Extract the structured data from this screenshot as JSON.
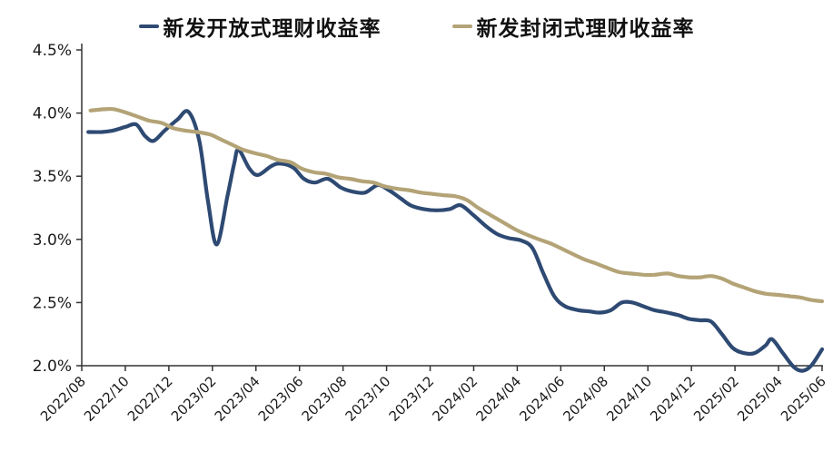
{
  "page": {
    "background": "#ffffff"
  },
  "chart_data": {
    "type": "line",
    "title": "",
    "grid": false,
    "legend_position": "top",
    "x_axis": {
      "tick_labels": [
        "2022/08",
        "2022/10",
        "2022/12",
        "2023/02",
        "2023/04",
        "2023/06",
        "2023/08",
        "2023/10",
        "2023/12",
        "2024/02",
        "2024/04",
        "2024/06",
        "2024/08",
        "2024/10",
        "2024/12",
        "2025/02",
        "2025/04",
        "2025/06"
      ],
      "tick_interval_months": 2,
      "range_months": [
        0,
        34.2
      ]
    },
    "y_axis": {
      "tick_labels": [
        "4.5%",
        "4.0%",
        "3.5%",
        "3.0%",
        "2.5%",
        "2.0%"
      ],
      "min": 2.0,
      "max": 4.5,
      "unit": "%"
    },
    "axis_color": "#333333",
    "text_color": "#1a1a1a",
    "series": [
      {
        "name": "新发开放式理财收益率",
        "color": "#2e4a73",
        "points": [
          [
            0.3,
            3.85
          ],
          [
            0.9,
            3.85
          ],
          [
            1.4,
            3.86
          ],
          [
            2.0,
            3.89
          ],
          [
            2.5,
            3.91
          ],
          [
            2.9,
            3.82
          ],
          [
            3.3,
            3.78
          ],
          [
            3.8,
            3.86
          ],
          [
            4.4,
            3.95
          ],
          [
            4.9,
            4.01
          ],
          [
            5.4,
            3.78
          ],
          [
            5.8,
            3.3
          ],
          [
            6.2,
            2.96
          ],
          [
            6.7,
            3.35
          ],
          [
            7.0,
            3.6
          ],
          [
            7.2,
            3.71
          ],
          [
            7.7,
            3.56
          ],
          [
            8.1,
            3.51
          ],
          [
            8.7,
            3.58
          ],
          [
            9.1,
            3.6
          ],
          [
            9.7,
            3.57
          ],
          [
            10.2,
            3.48
          ],
          [
            10.7,
            3.45
          ],
          [
            11.3,
            3.48
          ],
          [
            11.9,
            3.41
          ],
          [
            12.4,
            3.38
          ],
          [
            13.0,
            3.37
          ],
          [
            13.6,
            3.43
          ],
          [
            14.1,
            3.39
          ],
          [
            14.6,
            3.33
          ],
          [
            15.1,
            3.27
          ],
          [
            15.7,
            3.24
          ],
          [
            16.3,
            3.23
          ],
          [
            16.9,
            3.24
          ],
          [
            17.4,
            3.27
          ],
          [
            18.0,
            3.19
          ],
          [
            18.6,
            3.1
          ],
          [
            19.1,
            3.04
          ],
          [
            19.6,
            3.01
          ],
          [
            20.2,
            2.99
          ],
          [
            20.7,
            2.93
          ],
          [
            21.2,
            2.73
          ],
          [
            21.7,
            2.55
          ],
          [
            22.2,
            2.47
          ],
          [
            22.8,
            2.44
          ],
          [
            23.3,
            2.43
          ],
          [
            23.8,
            2.42
          ],
          [
            24.3,
            2.44
          ],
          [
            24.8,
            2.5
          ],
          [
            25.3,
            2.5
          ],
          [
            25.8,
            2.47
          ],
          [
            26.3,
            2.44
          ],
          [
            26.9,
            2.42
          ],
          [
            27.4,
            2.4
          ],
          [
            27.9,
            2.37
          ],
          [
            28.4,
            2.36
          ],
          [
            28.9,
            2.35
          ],
          [
            29.4,
            2.25
          ],
          [
            29.9,
            2.14
          ],
          [
            30.4,
            2.1
          ],
          [
            30.9,
            2.1
          ],
          [
            31.4,
            2.16
          ],
          [
            31.7,
            2.21
          ],
          [
            32.2,
            2.1
          ],
          [
            32.7,
            1.99
          ],
          [
            33.1,
            1.96
          ],
          [
            33.5,
            2.0
          ],
          [
            34.0,
            2.13
          ]
        ]
      },
      {
        "name": "新发封闭式理财收益率",
        "color": "#b3a376",
        "points": [
          [
            0.4,
            4.02
          ],
          [
            1.0,
            4.03
          ],
          [
            1.5,
            4.03
          ],
          [
            2.1,
            4.0
          ],
          [
            2.6,
            3.97
          ],
          [
            3.1,
            3.94
          ],
          [
            3.7,
            3.92
          ],
          [
            4.2,
            3.88
          ],
          [
            4.8,
            3.86
          ],
          [
            5.3,
            3.85
          ],
          [
            5.9,
            3.83
          ],
          [
            6.4,
            3.79
          ],
          [
            6.9,
            3.75
          ],
          [
            7.4,
            3.71
          ],
          [
            8.0,
            3.68
          ],
          [
            8.5,
            3.66
          ],
          [
            9.0,
            3.63
          ],
          [
            9.6,
            3.61
          ],
          [
            10.1,
            3.56
          ],
          [
            10.7,
            3.53
          ],
          [
            11.2,
            3.52
          ],
          [
            11.8,
            3.49
          ],
          [
            12.3,
            3.48
          ],
          [
            12.9,
            3.46
          ],
          [
            13.4,
            3.45
          ],
          [
            13.9,
            3.42
          ],
          [
            14.5,
            3.4
          ],
          [
            15.0,
            3.39
          ],
          [
            15.6,
            3.37
          ],
          [
            16.1,
            3.36
          ],
          [
            16.6,
            3.35
          ],
          [
            17.2,
            3.34
          ],
          [
            17.7,
            3.31
          ],
          [
            18.2,
            3.25
          ],
          [
            18.8,
            3.19
          ],
          [
            19.3,
            3.14
          ],
          [
            19.9,
            3.08
          ],
          [
            20.4,
            3.04
          ],
          [
            21.0,
            3.0
          ],
          [
            21.5,
            2.97
          ],
          [
            22.0,
            2.93
          ],
          [
            22.6,
            2.88
          ],
          [
            23.1,
            2.84
          ],
          [
            23.6,
            2.81
          ],
          [
            24.2,
            2.77
          ],
          [
            24.7,
            2.74
          ],
          [
            25.2,
            2.73
          ],
          [
            25.8,
            2.72
          ],
          [
            26.3,
            2.72
          ],
          [
            26.9,
            2.73
          ],
          [
            27.4,
            2.71
          ],
          [
            27.9,
            2.7
          ],
          [
            28.4,
            2.7
          ],
          [
            28.9,
            2.71
          ],
          [
            29.4,
            2.69
          ],
          [
            29.9,
            2.65
          ],
          [
            30.4,
            2.62
          ],
          [
            30.9,
            2.59
          ],
          [
            31.4,
            2.57
          ],
          [
            32.0,
            2.56
          ],
          [
            32.5,
            2.55
          ],
          [
            33.0,
            2.54
          ],
          [
            33.5,
            2.52
          ],
          [
            34.0,
            2.51
          ]
        ]
      }
    ]
  }
}
